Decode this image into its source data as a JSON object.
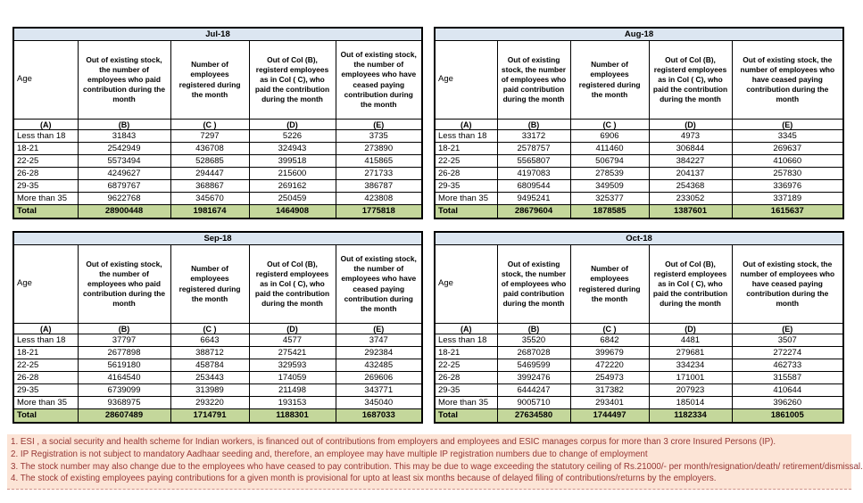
{
  "columns": {
    "age": "Age",
    "b": "Out of existing stock, the number of employees who paid contribution during the month",
    "c": "Number of employees registered during the month",
    "d": "Out of Col (B), registerd employees as in Col ( C), who paid the contribution during the month",
    "e": "Out of existing stock, the number of employees who have ceased paying contribution during the month",
    "letters": {
      "a": "(A)",
      "b": "(B)",
      "c": "(C )",
      "d": "(D)",
      "e": "(E)"
    }
  },
  "tables": [
    {
      "title": "Jul-18",
      "rows": [
        {
          "age": "Less than 18",
          "b": "31843",
          "c": "7297",
          "d": "5226",
          "e": "3735"
        },
        {
          "age": "18-21",
          "b": "2542949",
          "c": "436708",
          "d": "324943",
          "e": "273890"
        },
        {
          "age": "22-25",
          "b": "5573494",
          "c": "528685",
          "d": "399518",
          "e": "415865"
        },
        {
          "age": "26-28",
          "b": "4249627",
          "c": "294447",
          "d": "215600",
          "e": "271733"
        },
        {
          "age": "29-35",
          "b": "6879767",
          "c": "368867",
          "d": "269162",
          "e": "386787"
        },
        {
          "age": "More than 35",
          "b": "9622768",
          "c": "345670",
          "d": "250459",
          "e": "423808"
        }
      ],
      "total": {
        "age": "Total",
        "b": "28900448",
        "c": "1981674",
        "d": "1464908",
        "e": "1775818"
      }
    },
    {
      "title": "Aug-18",
      "rows": [
        {
          "age": "Less than 18",
          "b": "33172",
          "c": "6906",
          "d": "4973",
          "e": "3345"
        },
        {
          "age": "18-21",
          "b": "2578757",
          "c": "411460",
          "d": "306844",
          "e": "269637"
        },
        {
          "age": "22-25",
          "b": "5565807",
          "c": "506794",
          "d": "384227",
          "e": "410660"
        },
        {
          "age": "26-28",
          "b": "4197083",
          "c": "278539",
          "d": "204137",
          "e": "257830"
        },
        {
          "age": "29-35",
          "b": "6809544",
          "c": "349509",
          "d": "254368",
          "e": "336976"
        },
        {
          "age": "More than 35",
          "b": "9495241",
          "c": "325377",
          "d": "233052",
          "e": "337189"
        }
      ],
      "total": {
        "age": "Total",
        "b": "28679604",
        "c": "1878585",
        "d": "1387601",
        "e": "1615637"
      }
    },
    {
      "title": "Sep-18",
      "rows": [
        {
          "age": "Less than 18",
          "b": "37797",
          "c": "6643",
          "d": "4577",
          "e": "3747"
        },
        {
          "age": "18-21",
          "b": "2677898",
          "c": "388712",
          "d": "275421",
          "e": "292384"
        },
        {
          "age": "22-25",
          "b": "5619180",
          "c": "458784",
          "d": "329593",
          "e": "432485"
        },
        {
          "age": "26-28",
          "b": "4164540",
          "c": "253443",
          "d": "174059",
          "e": "269606"
        },
        {
          "age": "29-35",
          "b": "6739099",
          "c": "313989",
          "d": "211498",
          "e": "343771"
        },
        {
          "age": "More than 35",
          "b": "9368975",
          "c": "293220",
          "d": "193153",
          "e": "345040"
        }
      ],
      "total": {
        "age": "Total",
        "b": "28607489",
        "c": "1714791",
        "d": "1188301",
        "e": "1687033"
      }
    },
    {
      "title": "Oct-18",
      "rows": [
        {
          "age": "Less than 18",
          "b": "35520",
          "c": "6842",
          "d": "4481",
          "e": "3507"
        },
        {
          "age": "18-21",
          "b": "2687028",
          "c": "399679",
          "d": "279681",
          "e": "272274"
        },
        {
          "age": "22-25",
          "b": "5469599",
          "c": "472220",
          "d": "334234",
          "e": "462733"
        },
        {
          "age": "26-28",
          "b": "3992476",
          "c": "254973",
          "d": "171001",
          "e": "315587"
        },
        {
          "age": "29-35",
          "b": "6444247",
          "c": "317382",
          "d": "207923",
          "e": "410644"
        },
        {
          "age": "More than 35",
          "b": "9005710",
          "c": "293401",
          "d": "185014",
          "e": "396260"
        }
      ],
      "total": {
        "age": "Total",
        "b": "27634580",
        "c": "1744497",
        "d": "1182334",
        "e": "1861005"
      }
    }
  ],
  "footnotes": [
    "1. ESI , a social security and health scheme for Indian workers, is financed out of contributions from employers and employees and ESIC manages corpus for more than 3 crore Insured Persons (IP).",
    "2. IP Registration is not subject to mandatory Aadhaar seeding and, therefore, an employee may have multiple IP registration numbers due to change of employment",
    "3. The stock number may also change due to the employees who have ceased to pay contribution. This may be due to wage exceeding the statutory ceiling of Rs.21000/- per month/resignation/death/ retirement/dismissal.",
    "4. The stock of existing employees paying contributions for a given month is provisional for upto at least six months because of delayed filing of contributions/returns by the employers."
  ],
  "colors": {
    "title_bar_bg": "#DCE6F1",
    "total_row_bg": "#C4D79B",
    "footnote_bg": "#FCE4D6",
    "footnote_text": "#963634",
    "grid_border": "#000000"
  }
}
